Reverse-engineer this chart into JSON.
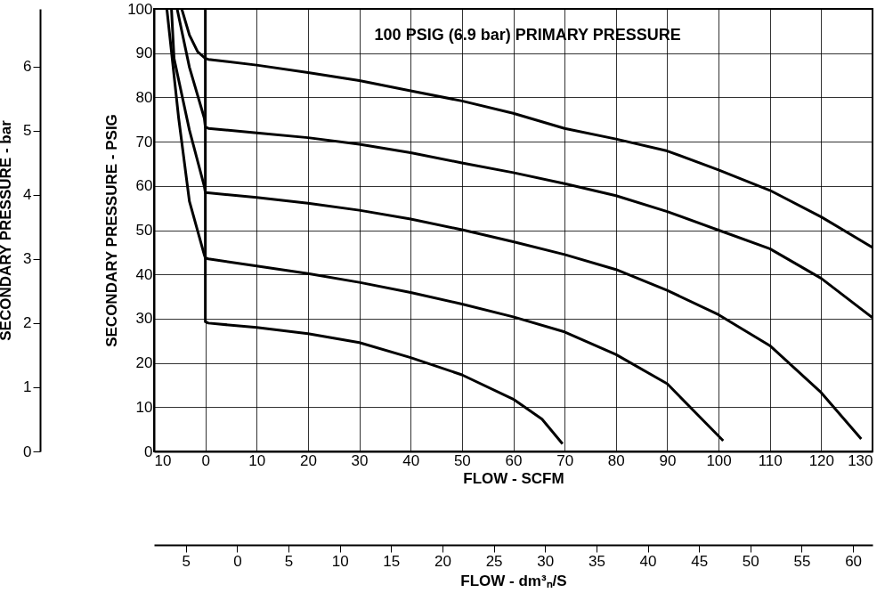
{
  "chart_data": {
    "type": "line",
    "title": "100 PSIG (6.9 bar) PRIMARY PRESSURE",
    "xlabel": "FLOW - SCFM",
    "ylabel": "SECONDARY PRESSURE - PSIG",
    "y2label": "SECONDARY PRESSURE - bar",
    "x2label": "FLOW - dm³ₙ/S",
    "xlim": [
      -10,
      130
    ],
    "xticks": [
      {
        "value": -10,
        "label": "10"
      },
      0,
      10,
      20,
      30,
      40,
      50,
      60,
      70,
      80,
      90,
      100,
      110,
      120,
      130
    ],
    "ylim": [
      0,
      100
    ],
    "yticks": [
      0,
      10,
      20,
      30,
      40,
      50,
      60,
      70,
      80,
      90,
      100
    ],
    "y2lim": [
      0,
      6.9
    ],
    "y2ticks": [
      0,
      1,
      2,
      3,
      4,
      5,
      6
    ],
    "x2lim": [
      -8.1,
      61.9
    ],
    "x2ticks": [
      {
        "value": -5,
        "label": "5"
      },
      0,
      5,
      10,
      15,
      20,
      25,
      30,
      35,
      40,
      45,
      50,
      55,
      60
    ],
    "grid": true,
    "marker": "none",
    "line_style": "solid",
    "series": [
      {
        "color": "#000000",
        "x": [
          -4.6,
          -3.1,
          -1.5,
          0,
          0.6,
          10,
          20,
          30,
          40,
          50,
          60,
          70,
          80,
          90,
          100,
          110,
          120,
          130
        ],
        "values": [
          100,
          94.1,
          90.3,
          88.8,
          88.6,
          87.3,
          85.6,
          83.8,
          81.5,
          79.2,
          76.4,
          73,
          70.6,
          67.9,
          63.6,
          59,
          53,
          46.1
        ]
      },
      {
        "color": "#000000",
        "x": [
          -5.5,
          -3.1,
          -0.2,
          0,
          0.6,
          10,
          20,
          30,
          40,
          50,
          60,
          70,
          80,
          90,
          100,
          110,
          120,
          130
        ],
        "values": [
          100,
          86.8,
          75.3,
          73.3,
          73.0,
          72,
          70.9,
          69.4,
          67.5,
          65.2,
          63,
          60.5,
          57.8,
          54.2,
          50,
          45.8,
          39.1,
          30.2
        ]
      },
      {
        "color": "#000000",
        "x": [
          -6.6,
          -6.1,
          -3.1,
          -0.2,
          0,
          0.9,
          10,
          20,
          30,
          40,
          50,
          60,
          70,
          80,
          90,
          100,
          110,
          120,
          127.8
        ],
        "values": [
          100,
          88.8,
          72.6,
          59.9,
          58.5,
          58.4,
          57.4,
          56.1,
          54.5,
          52.5,
          50.1,
          47.4,
          44.5,
          41.1,
          36.4,
          30.9,
          23.9,
          13.3,
          2.8
        ]
      },
      {
        "color": "#000000",
        "x": [
          -7.5,
          -5.2,
          -3.1,
          -0.2,
          0,
          0.6,
          10,
          20,
          30,
          40,
          50,
          60,
          70,
          80,
          90,
          100.9
        ],
        "values": [
          100,
          75.3,
          56.5,
          44.4,
          43.7,
          43.5,
          41.9,
          40.2,
          38.2,
          35.9,
          33.3,
          30.4,
          27,
          21.9,
          15.3,
          2.4
        ]
      },
      {
        "color": "#000000",
        "x": [
          0,
          0,
          0.6,
          10,
          20,
          30,
          40,
          50,
          60,
          65.6,
          69.6
        ],
        "values": [
          100,
          29.3,
          29.0,
          28,
          26.6,
          24.6,
          21.2,
          17.3,
          11.8,
          7.3,
          1.7
        ]
      }
    ]
  }
}
